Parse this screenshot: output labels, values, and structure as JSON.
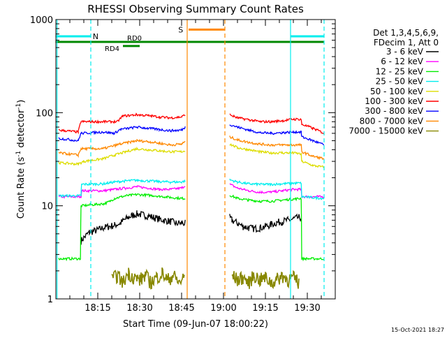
{
  "chart_data": {
    "type": "line",
    "title": "RHESSI Observing Summary Count Rates",
    "xlabel": "Start Time (09-Jun-07 18:00:22)",
    "ylabel": "Count Rate (s⁻¹ detector⁻¹)",
    "ylabel_parts": {
      "main": "Count Rate (s",
      "exp1": "-1",
      "mid": " detector",
      "exp2": "-1",
      "end": ")"
    },
    "footer": "15-Oct-2021 18:27",
    "x_unit": "minutes after 18:00",
    "xlim": [
      0,
      100
    ],
    "ylim": [
      1,
      1000
    ],
    "yscale": "log",
    "x_ticks": [
      {
        "value": 15,
        "label": "18:15"
      },
      {
        "value": 30,
        "label": "18:30"
      },
      {
        "value": 45,
        "label": "18:45"
      },
      {
        "value": 60,
        "label": "19:00"
      },
      {
        "value": 75,
        "label": "19:15"
      },
      {
        "value": 90,
        "label": "19:30"
      }
    ],
    "y_ticks": [
      {
        "value": 1,
        "label": "1"
      },
      {
        "value": 10,
        "label": "10"
      },
      {
        "value": 100,
        "label": "100"
      },
      {
        "value": 1000,
        "label": "1000"
      }
    ],
    "legend_header": [
      "Det 1,3,4,5,6,9,",
      "FDecim 1, Att 0"
    ],
    "legend_position": "right",
    "gap": [
      46.5,
      62
    ],
    "series": [
      {
        "name": "3 - 6 keV",
        "color": "#000000",
        "points": [
          [
            9,
            4.2
          ],
          [
            12,
            5.2
          ],
          [
            15,
            5.5
          ],
          [
            17,
            5.8
          ],
          [
            19,
            6.0
          ],
          [
            21,
            6.2
          ],
          [
            23,
            6.5
          ],
          [
            25,
            7.2
          ],
          [
            27,
            7.8
          ],
          [
            29,
            8.2
          ],
          [
            31,
            8.0
          ],
          [
            33,
            7.8
          ],
          [
            35,
            7.5
          ],
          [
            37,
            7.2
          ],
          [
            39,
            7.0
          ],
          [
            41,
            6.8
          ],
          [
            43,
            6.5
          ],
          [
            45,
            6.5
          ],
          [
            46.3,
            6.5
          ],
          [
            62.2,
            7.5
          ],
          [
            63,
            7.0
          ],
          [
            65,
            6.5
          ],
          [
            67,
            6.0
          ],
          [
            69,
            5.8
          ],
          [
            71,
            5.7
          ],
          [
            73,
            5.8
          ],
          [
            75,
            6.0
          ],
          [
            77,
            6.3
          ],
          [
            79,
            6.6
          ],
          [
            81,
            6.8
          ],
          [
            83,
            7.0
          ],
          [
            85,
            7.2
          ],
          [
            87,
            7.5
          ],
          [
            87.8,
            7.5
          ]
        ]
      },
      {
        "name": "6 - 12 keV",
        "color": "#ff00ff",
        "points": [
          [
            1,
            12.5
          ],
          [
            9,
            12.5
          ],
          [
            9.2,
            14.5
          ],
          [
            17,
            14.5
          ],
          [
            21,
            15
          ],
          [
            25,
            15.5
          ],
          [
            29,
            16
          ],
          [
            33,
            15.5
          ],
          [
            37,
            15
          ],
          [
            41,
            15
          ],
          [
            45,
            15.5
          ],
          [
            46.3,
            16.5
          ],
          [
            62.2,
            17
          ],
          [
            65,
            15.5
          ],
          [
            69,
            14.5
          ],
          [
            73,
            14
          ],
          [
            77,
            14
          ],
          [
            81,
            14.5
          ],
          [
            85,
            15
          ],
          [
            87.8,
            15
          ],
          [
            88,
            12.5
          ],
          [
            96,
            12.5
          ]
        ]
      },
      {
        "name": "12 - 25 keV",
        "color": "#00ee00",
        "points": [
          [
            1,
            2.7
          ],
          [
            8.8,
            2.7
          ],
          [
            9,
            10
          ],
          [
            17,
            10.5
          ],
          [
            19,
            11
          ],
          [
            21,
            12
          ],
          [
            25,
            12.8
          ],
          [
            29,
            13.2
          ],
          [
            33,
            13
          ],
          [
            37,
            12.7
          ],
          [
            41,
            12.3
          ],
          [
            45,
            12
          ],
          [
            46.3,
            12
          ],
          [
            62.2,
            13
          ],
          [
            65,
            12
          ],
          [
            69,
            11.5
          ],
          [
            73,
            11.2
          ],
          [
            77,
            11.2
          ],
          [
            81,
            11.5
          ],
          [
            85,
            11.8
          ],
          [
            87.8,
            12
          ],
          [
            88,
            2.7
          ],
          [
            96,
            2.7
          ]
        ]
      },
      {
        "name": "25 - 50 keV",
        "color": "#00eeee",
        "points": [
          [
            1,
            12.8
          ],
          [
            9,
            12.8
          ],
          [
            9.2,
            17
          ],
          [
            17,
            17.2
          ],
          [
            21,
            18
          ],
          [
            25,
            18.5
          ],
          [
            29,
            18.8
          ],
          [
            33,
            18.5
          ],
          [
            37,
            18.2
          ],
          [
            41,
            18
          ],
          [
            45,
            18
          ],
          [
            46.3,
            18.5
          ],
          [
            62.2,
            19
          ],
          [
            65,
            18
          ],
          [
            69,
            17.2
          ],
          [
            73,
            17
          ],
          [
            77,
            17
          ],
          [
            81,
            17.2
          ],
          [
            85,
            17.5
          ],
          [
            87.8,
            17.5
          ],
          [
            88,
            12.5
          ],
          [
            96,
            12
          ]
        ]
      },
      {
        "name": "50 - 100 keV",
        "color": "#dddd00",
        "points": [
          [
            1,
            29
          ],
          [
            8,
            28
          ],
          [
            10,
            30
          ],
          [
            17,
            32
          ],
          [
            21,
            35
          ],
          [
            25,
            38
          ],
          [
            29,
            41
          ],
          [
            33,
            40
          ],
          [
            37,
            39
          ],
          [
            41,
            38
          ],
          [
            45,
            38
          ],
          [
            46.3,
            39
          ],
          [
            62.2,
            46
          ],
          [
            65,
            42
          ],
          [
            69,
            40
          ],
          [
            73,
            38
          ],
          [
            77,
            37
          ],
          [
            81,
            37
          ],
          [
            85,
            37
          ],
          [
            87.8,
            36
          ],
          [
            88,
            30
          ],
          [
            92,
            27
          ],
          [
            96,
            26
          ]
        ]
      },
      {
        "name": "100 - 300 keV",
        "color": "#ff0000",
        "points": [
          [
            1,
            65
          ],
          [
            8,
            62
          ],
          [
            9,
            80
          ],
          [
            17,
            80
          ],
          [
            22,
            80
          ],
          [
            24,
            92
          ],
          [
            29,
            95
          ],
          [
            33,
            93
          ],
          [
            37,
            90
          ],
          [
            41,
            88
          ],
          [
            45,
            90
          ],
          [
            46.3,
            95
          ],
          [
            62.2,
            95
          ],
          [
            65,
            88
          ],
          [
            69,
            84
          ],
          [
            73,
            80
          ],
          [
            77,
            80
          ],
          [
            81,
            82
          ],
          [
            85,
            85
          ],
          [
            87.8,
            85
          ],
          [
            88,
            75
          ],
          [
            92,
            68
          ],
          [
            96,
            60
          ]
        ]
      },
      {
        "name": "300 - 800 keV",
        "color": "#0000ff",
        "points": [
          [
            1,
            53
          ],
          [
            8,
            50
          ],
          [
            9,
            60
          ],
          [
            17,
            62
          ],
          [
            21,
            60
          ],
          [
            23,
            66
          ],
          [
            29,
            70
          ],
          [
            33,
            68
          ],
          [
            37,
            66
          ],
          [
            41,
            64
          ],
          [
            45,
            65
          ],
          [
            46.3,
            70
          ],
          [
            62.2,
            75
          ],
          [
            65,
            70
          ],
          [
            69,
            65
          ],
          [
            73,
            61
          ],
          [
            77,
            60
          ],
          [
            81,
            61
          ],
          [
            85,
            62
          ],
          [
            87.8,
            62
          ],
          [
            88,
            55
          ],
          [
            92,
            50
          ],
          [
            96,
            45
          ]
        ]
      },
      {
        "name": "800 - 7000 keV",
        "color": "#ff8800",
        "points": [
          [
            1,
            37
          ],
          [
            8,
            35
          ],
          [
            9,
            41
          ],
          [
            17,
            41
          ],
          [
            23,
            46
          ],
          [
            29,
            50
          ],
          [
            33,
            49
          ],
          [
            37,
            47
          ],
          [
            41,
            45
          ],
          [
            45,
            46
          ],
          [
            46.3,
            49
          ],
          [
            62.2,
            55
          ],
          [
            65,
            51
          ],
          [
            69,
            48
          ],
          [
            73,
            46
          ],
          [
            77,
            45
          ],
          [
            81,
            45
          ],
          [
            85,
            45
          ],
          [
            87.8,
            45
          ],
          [
            88,
            38
          ],
          [
            92,
            34
          ],
          [
            96,
            32
          ]
        ]
      },
      {
        "name": "7000 - 15000 keV",
        "color": "#888800",
        "points": [
          [
            20,
            1.6
          ],
          [
            22,
            1.8
          ],
          [
            24,
            1.5
          ],
          [
            26,
            1.9
          ],
          [
            28,
            1.7
          ],
          [
            30,
            1.6
          ],
          [
            32,
            1.8
          ],
          [
            34,
            1.5
          ],
          [
            36,
            1.7
          ],
          [
            38,
            1.9
          ],
          [
            40,
            1.6
          ],
          [
            42,
            1.8
          ],
          [
            44,
            1.5
          ],
          [
            46,
            1.7
          ],
          [
            63,
            1.8
          ],
          [
            65,
            1.6
          ],
          [
            67,
            1.7
          ],
          [
            69,
            1.5
          ],
          [
            71,
            1.8
          ],
          [
            73,
            1.6
          ],
          [
            75,
            1.7
          ],
          [
            77,
            1.5
          ],
          [
            79,
            1.6
          ],
          [
            81,
            1.8
          ],
          [
            83,
            1.6
          ],
          [
            85,
            1.7
          ],
          [
            87,
            1.5
          ]
        ]
      }
    ],
    "annotations": {
      "N": {
        "label": "N",
        "color": "#00eeee",
        "bars": [
          [
            0,
            12.5
          ],
          [
            84,
            96
          ]
        ],
        "y": 660,
        "dashed_x": [
          12.5,
          96
        ],
        "solid_x": [
          84
        ]
      },
      "S": {
        "label": "S",
        "color": "#ff8800",
        "bar": [
          47.5,
          60.5
        ],
        "y": 780,
        "solid_x": [
          47
        ],
        "dashed_x": [
          60.5
        ]
      },
      "RD0": {
        "label": "RD0",
        "color": "#008800",
        "bar": [
          0,
          96
        ],
        "y": 575
      },
      "RD4": {
        "label": "RD4",
        "color": "#008800",
        "bar": [
          24,
          30
        ],
        "y": 520
      }
    }
  }
}
